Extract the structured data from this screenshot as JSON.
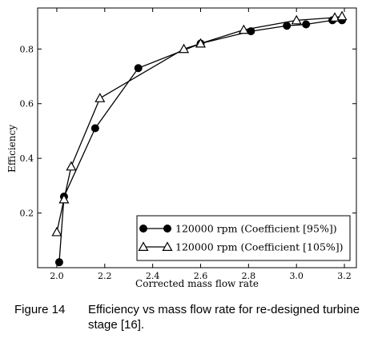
{
  "chart_data": {
    "type": "line",
    "xlabel": "Corrected mass flow rate",
    "ylabel": "Efficiency",
    "xlim": [
      1.92,
      3.25
    ],
    "ylim": [
      0.0,
      0.95
    ],
    "xticks": [
      "2.0",
      "2.2",
      "2.4",
      "2.6",
      "2.8",
      "3.0",
      "3.2"
    ],
    "yticks": [
      "0.2",
      "0.4",
      "0.6",
      "0.8"
    ],
    "grid": false,
    "legend_position": "bottom-right",
    "series": [
      {
        "name": "120000 rpm (Coefficient [95%])",
        "marker": "filled-circle",
        "x": [
          2.01,
          2.03,
          2.16,
          2.34,
          2.6,
          2.81,
          2.96,
          3.04,
          3.15,
          3.19
        ],
        "y": [
          0.02,
          0.26,
          0.51,
          0.73,
          0.82,
          0.865,
          0.885,
          0.89,
          0.905,
          0.905
        ]
      },
      {
        "name": "120000 rpm (Coefficient [105%])",
        "marker": "open-triangle",
        "x": [
          2.0,
          2.03,
          2.06,
          2.18,
          2.53,
          2.6,
          2.78,
          3.0,
          3.16,
          3.19
        ],
        "y": [
          0.13,
          0.25,
          0.37,
          0.62,
          0.8,
          0.82,
          0.87,
          0.905,
          0.915,
          0.92
        ]
      }
    ]
  },
  "caption": {
    "number": "Figure 14",
    "text": "Efficiency vs mass flow rate for re-designed turbine stage [16]."
  }
}
